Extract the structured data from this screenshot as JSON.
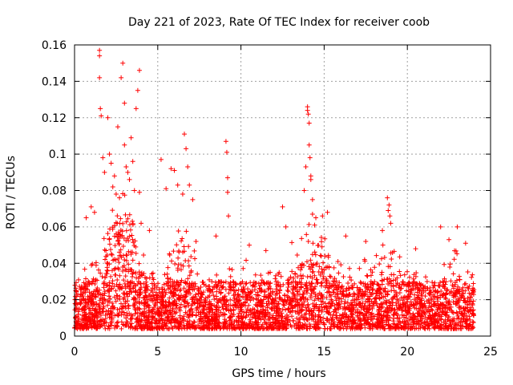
{
  "chart_data": {
    "type": "scatter",
    "title": "Day 221 of 2023, Rate Of TEC Index for receiver coob",
    "xlabel": "GPS time / hours",
    "ylabel": "ROTI / TECUs",
    "xlim": [
      0,
      25
    ],
    "ylim": [
      0,
      0.16
    ],
    "x_ticks": [
      0,
      5,
      10,
      15,
      20,
      25
    ],
    "x_tick_labels": [
      "0",
      "5",
      "10",
      "15",
      "20",
      "25"
    ],
    "y_ticks": [
      0,
      0.02,
      0.04,
      0.06,
      0.08,
      0.1,
      0.12,
      0.14,
      0.16
    ],
    "y_tick_labels": [
      "0",
      "0.02",
      "0.04",
      "0.06",
      "0.08",
      "0.1",
      "0.12",
      "0.14",
      "0.16"
    ],
    "grid": true,
    "marker": "+",
    "color": "#ff0000",
    "series": [
      {
        "name": "ROTI",
        "x_range": [
          0,
          24
        ],
        "dense_band_y": [
          0.004,
          0.03
        ],
        "points": [
          [
            1.5,
            0.157
          ],
          [
            1.5,
            0.154
          ],
          [
            1.5,
            0.142
          ],
          [
            1.55,
            0.125
          ],
          [
            1.6,
            0.121
          ],
          [
            1.7,
            0.098
          ],
          [
            1.8,
            0.09
          ],
          [
            2.0,
            0.12
          ],
          [
            2.1,
            0.1
          ],
          [
            2.2,
            0.095
          ],
          [
            2.3,
            0.082
          ],
          [
            2.5,
            0.078
          ],
          [
            2.8,
            0.142
          ],
          [
            2.9,
            0.15
          ],
          [
            3.0,
            0.128
          ],
          [
            3.0,
            0.105
          ],
          [
            3.1,
            0.093
          ],
          [
            3.2,
            0.09
          ],
          [
            3.3,
            0.086
          ],
          [
            3.4,
            0.109
          ],
          [
            3.5,
            0.096
          ],
          [
            3.6,
            0.08
          ],
          [
            3.7,
            0.125
          ],
          [
            3.8,
            0.135
          ],
          [
            3.9,
            0.146
          ],
          [
            3.9,
            0.079
          ],
          [
            4.0,
            0.062
          ],
          [
            2.6,
            0.115
          ],
          [
            2.4,
            0.088
          ],
          [
            2.7,
            0.076
          ],
          [
            5.2,
            0.097
          ],
          [
            5.5,
            0.081
          ],
          [
            5.8,
            0.092
          ],
          [
            6.0,
            0.091
          ],
          [
            6.2,
            0.083
          ],
          [
            6.5,
            0.078
          ],
          [
            6.6,
            0.111
          ],
          [
            6.7,
            0.103
          ],
          [
            6.8,
            0.093
          ],
          [
            6.9,
            0.083
          ],
          [
            7.1,
            0.075
          ],
          [
            9.1,
            0.107
          ],
          [
            9.15,
            0.101
          ],
          [
            9.2,
            0.087
          ],
          [
            9.2,
            0.079
          ],
          [
            9.25,
            0.066
          ],
          [
            12.5,
            0.071
          ],
          [
            12.7,
            0.06
          ],
          [
            13.8,
            0.08
          ],
          [
            13.9,
            0.093
          ],
          [
            14.0,
            0.124
          ],
          [
            14.0,
            0.126
          ],
          [
            14.05,
            0.122
          ],
          [
            14.1,
            0.117
          ],
          [
            14.1,
            0.105
          ],
          [
            14.15,
            0.098
          ],
          [
            14.2,
            0.088
          ],
          [
            14.2,
            0.086
          ],
          [
            14.3,
            0.075
          ],
          [
            14.3,
            0.067
          ],
          [
            14.5,
            0.065
          ],
          [
            14.9,
            0.066
          ],
          [
            15.2,
            0.068
          ],
          [
            18.5,
            0.058
          ],
          [
            18.8,
            0.076
          ],
          [
            18.85,
            0.069
          ],
          [
            18.9,
            0.072
          ],
          [
            18.95,
            0.066
          ],
          [
            19.0,
            0.062
          ],
          [
            0.7,
            0.065
          ],
          [
            1.0,
            0.071
          ],
          [
            1.2,
            0.068
          ],
          [
            4.5,
            0.058
          ],
          [
            7.3,
            0.052
          ],
          [
            8.5,
            0.055
          ],
          [
            10.5,
            0.05
          ],
          [
            11.5,
            0.047
          ],
          [
            16.3,
            0.055
          ],
          [
            17.5,
            0.052
          ],
          [
            20.5,
            0.048
          ],
          [
            22.0,
            0.06
          ],
          [
            22.5,
            0.053
          ],
          [
            23.0,
            0.06
          ],
          [
            23.5,
            0.051
          ]
        ]
      }
    ]
  }
}
